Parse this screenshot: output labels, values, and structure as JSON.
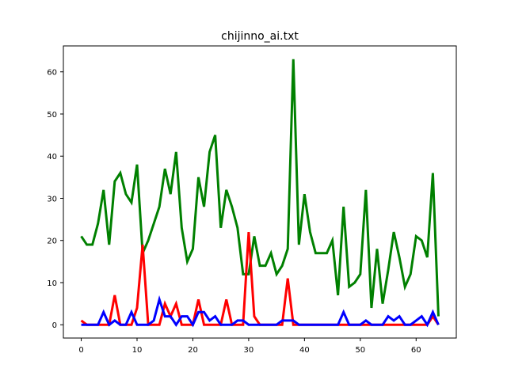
{
  "chart_data": {
    "type": "line",
    "title": "chijinno_ai.txt",
    "xlabel": "",
    "ylabel": "",
    "xlim": [
      -3.2,
      67.2
    ],
    "ylim": [
      -3.15,
      66.15
    ],
    "xticks": [
      0,
      10,
      20,
      30,
      40,
      50,
      60
    ],
    "yticks": [
      0,
      10,
      20,
      30,
      40,
      50,
      60
    ],
    "grid": false,
    "series": [
      {
        "color": "#008000",
        "values": [
          21,
          19,
          19,
          24,
          32,
          19,
          34,
          36,
          31,
          29,
          38,
          17,
          20,
          24,
          28,
          37,
          31,
          41,
          23,
          15,
          18,
          35,
          28,
          41,
          45,
          23,
          32,
          28,
          23,
          12,
          12,
          21,
          14,
          14,
          17,
          12,
          14,
          18,
          63,
          19,
          31,
          22,
          17,
          17,
          17,
          20,
          7,
          28,
          9,
          10,
          12,
          32,
          4,
          18,
          5,
          13,
          22,
          16,
          9,
          12,
          21,
          20,
          16,
          36,
          2
        ]
      },
      {
        "color": "#ff0000",
        "values": [
          1,
          0,
          0,
          0,
          0,
          0,
          7,
          0,
          0,
          0,
          4,
          19,
          0,
          0,
          0,
          5,
          2,
          5,
          0,
          0,
          0,
          6,
          0,
          0,
          0,
          0,
          6,
          0,
          0,
          0,
          22,
          2,
          0,
          0,
          0,
          0,
          0,
          11,
          0,
          0,
          0,
          0,
          0,
          0,
          0,
          0,
          0,
          0,
          0,
          0,
          0,
          0,
          0,
          0,
          0,
          0,
          0,
          0,
          0,
          0,
          0,
          0,
          0,
          2,
          0
        ]
      },
      {
        "color": "#0000ff",
        "values": [
          0,
          0,
          0,
          0,
          3,
          0,
          1,
          0,
          0,
          3,
          0,
          0,
          0,
          1,
          6,
          2,
          2,
          0,
          2,
          2,
          0,
          3,
          3,
          1,
          2,
          0,
          0,
          0,
          1,
          1,
          0,
          0,
          0,
          0,
          0,
          0,
          1,
          1,
          1,
          0,
          0,
          0,
          0,
          0,
          0,
          0,
          0,
          3,
          0,
          0,
          0,
          1,
          0,
          0,
          0,
          2,
          1,
          2,
          0,
          0,
          1,
          2,
          0,
          3,
          0
        ]
      }
    ]
  }
}
